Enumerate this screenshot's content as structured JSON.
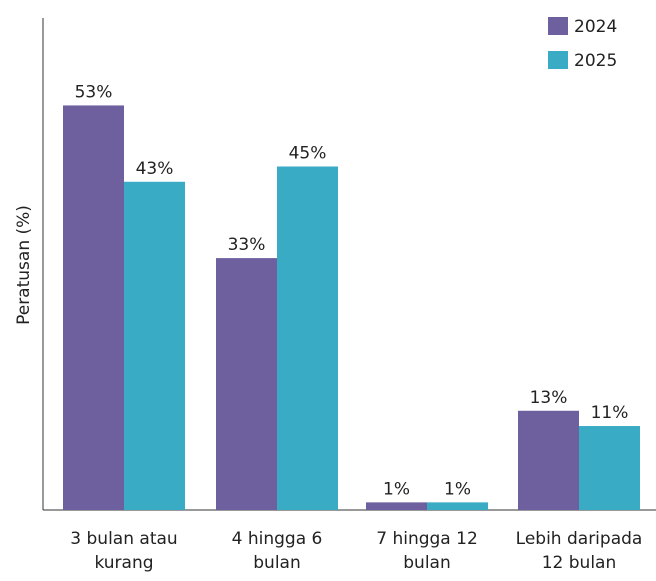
{
  "chart_data": {
    "type": "bar",
    "ylabel": "Peratusan (%)",
    "categories": [
      "3 bulan atau\nkurang",
      "4 hingga 6\nbulan",
      "7 hingga 12\nbulan",
      "Lebih daripada\n12 bulan"
    ],
    "series": [
      {
        "name": "2024",
        "color": "#6e5f9e",
        "values": [
          53,
          33,
          1,
          13
        ],
        "value_labels": [
          "53%",
          "33%",
          "1%",
          "13%"
        ]
      },
      {
        "name": "2025",
        "color": "#3aabc5",
        "values": [
          43,
          45,
          1,
          11
        ],
        "value_labels": [
          "43%",
          "45%",
          "1%",
          "11%"
        ]
      }
    ],
    "ylim": [
      0,
      60
    ]
  }
}
